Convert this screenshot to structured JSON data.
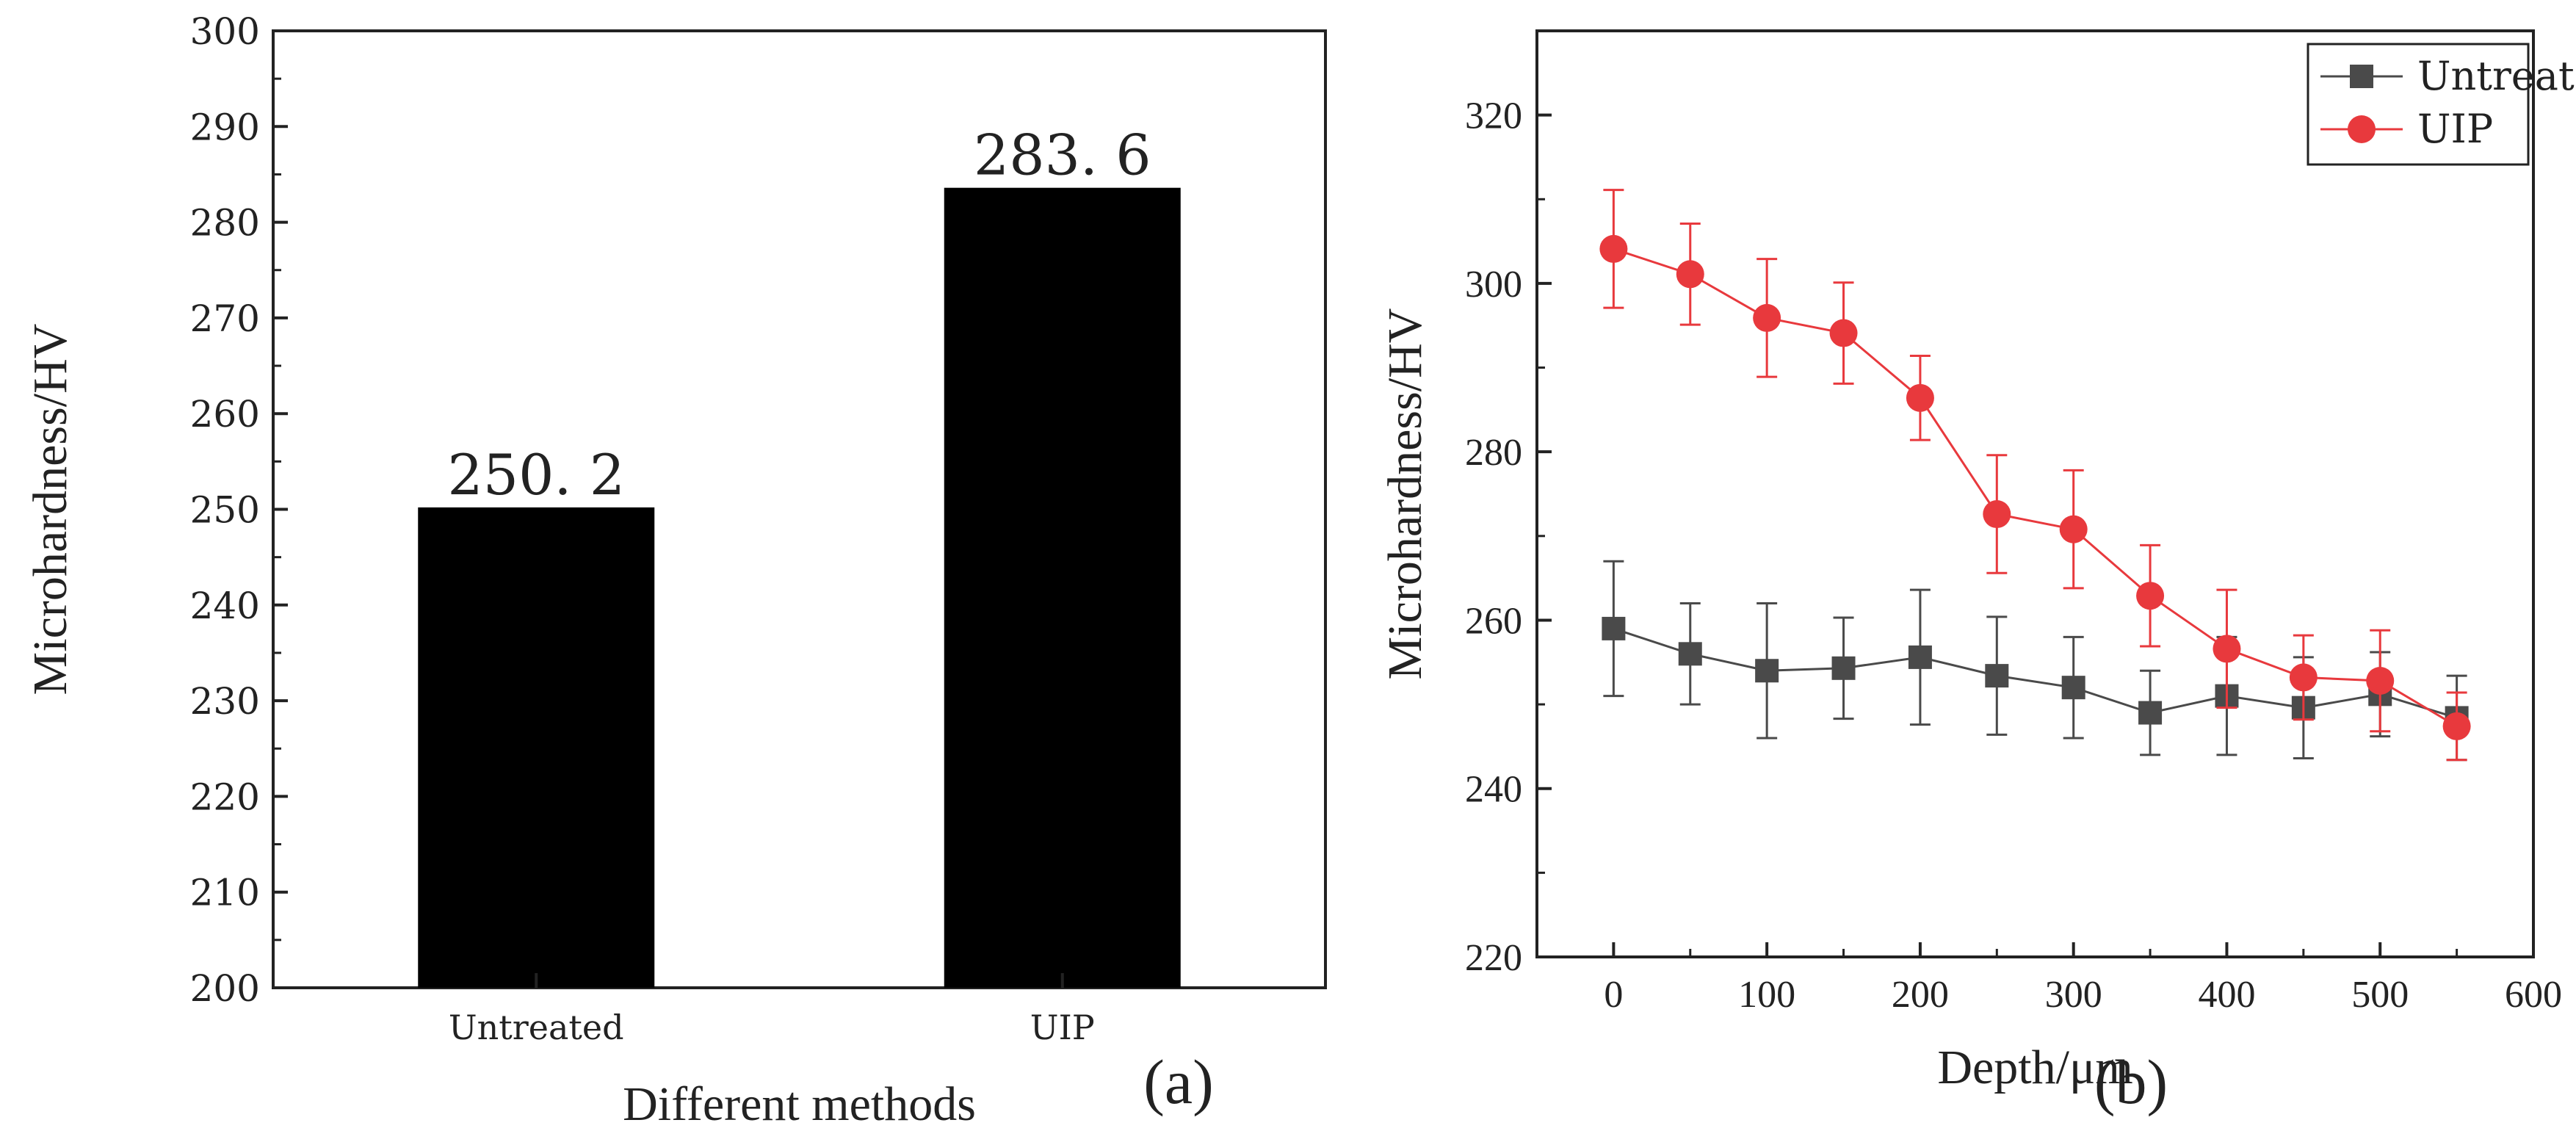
{
  "figure": {
    "panel_a_label": "(a)",
    "panel_b_label": "(b)"
  },
  "chart_data": [
    {
      "type": "bar",
      "panel": "a",
      "title": "",
      "xlabel": "Different methods",
      "ylabel": "Microhardness/HV",
      "categories": [
        "Untreated",
        "UIP"
      ],
      "values": [
        250.2,
        283.6
      ],
      "value_labels": [
        "250. 2",
        "283. 6"
      ],
      "ylim": [
        200,
        300
      ],
      "yticks": [
        200,
        210,
        220,
        230,
        240,
        250,
        260,
        270,
        280,
        290,
        300
      ],
      "bar_color": "#000000",
      "grid": false
    },
    {
      "type": "line",
      "panel": "b",
      "title": "",
      "xlabel": "Depth/μm",
      "ylabel": "Microhardness/HV",
      "xlim": [
        -50,
        600
      ],
      "ylim": [
        220,
        330
      ],
      "xticks": [
        0,
        100,
        200,
        300,
        400,
        500,
        600
      ],
      "yticks": [
        220,
        240,
        260,
        280,
        300,
        320
      ],
      "legend_position": "top-right",
      "grid": false,
      "x": [
        0,
        50,
        100,
        150,
        200,
        250,
        300,
        350,
        400,
        450,
        500,
        550
      ],
      "series": [
        {
          "name": "Untreated",
          "color": "#4a4a4a",
          "marker": "square",
          "values": [
            259,
            256,
            254,
            254.3,
            255.6,
            253.4,
            252,
            249,
            251,
            249.6,
            251.2,
            248.4
          ],
          "errors": [
            8,
            6,
            8,
            6,
            8,
            7,
            6,
            5,
            7,
            6,
            5,
            5
          ]
        },
        {
          "name": "UIP",
          "color": "#e8393d",
          "marker": "circle",
          "values": [
            304.1,
            301.1,
            295.9,
            294.1,
            286.4,
            272.6,
            270.8,
            262.9,
            256.6,
            253.2,
            252.8,
            247.4
          ],
          "errors": [
            7,
            6,
            7,
            6,
            5,
            7,
            7,
            6,
            7,
            5,
            6,
            4
          ]
        }
      ]
    }
  ]
}
